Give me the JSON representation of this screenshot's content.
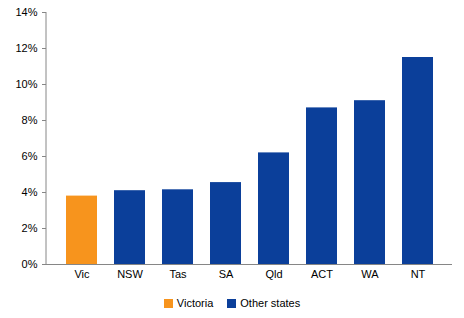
{
  "chart_data": {
    "type": "bar",
    "categories": [
      "Vic",
      "NSW",
      "Tas",
      "SA",
      "Qld",
      "ACT",
      "WA",
      "NT"
    ],
    "series": [
      {
        "name": "Victoria",
        "color": "#f7941d",
        "values": [
          3.8,
          null,
          null,
          null,
          null,
          null,
          null,
          null
        ]
      },
      {
        "name": "Other states",
        "color": "#0b3f9a",
        "values": [
          null,
          4.1,
          4.15,
          4.55,
          6.2,
          8.7,
          9.1,
          11.5
        ]
      }
    ],
    "ylim": [
      0,
      14
    ],
    "yticks": [
      {
        "value": 0,
        "label": "0%"
      },
      {
        "value": 2,
        "label": "2%"
      },
      {
        "value": 4,
        "label": "4%"
      },
      {
        "value": 6,
        "label": "6%"
      },
      {
        "value": 8,
        "label": "8%"
      },
      {
        "value": 10,
        "label": "10%"
      },
      {
        "value": 12,
        "label": "12%"
      },
      {
        "value": 14,
        "label": "14%"
      }
    ],
    "grid": false,
    "legend": "bottom"
  }
}
